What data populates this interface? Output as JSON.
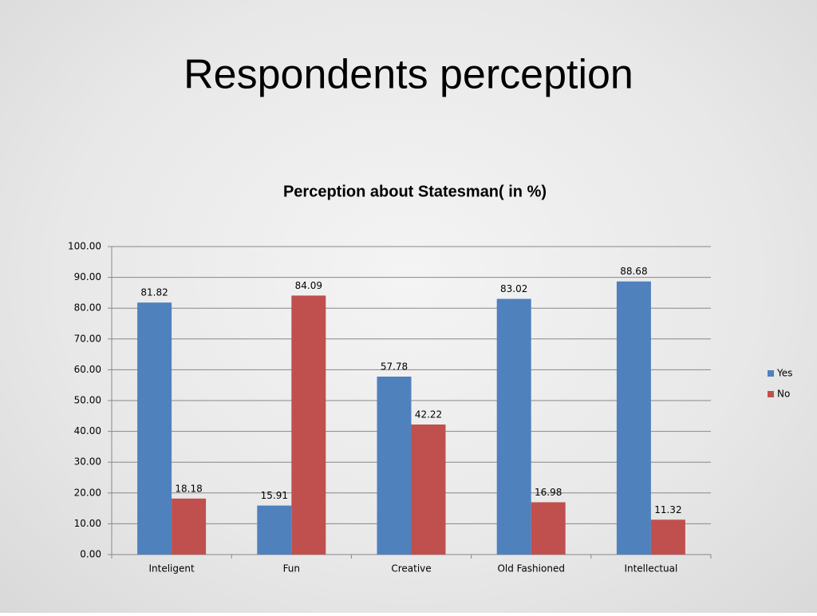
{
  "slide": {
    "title": "Respondents perception"
  },
  "chart_data": {
    "type": "bar",
    "title": "Perception about Statesman( in %)",
    "categories": [
      "Inteligent",
      "Fun",
      "Creative",
      "Old Fashioned",
      "Intellectual"
    ],
    "series": [
      {
        "name": "Yes",
        "color": "#4f81bd",
        "values": [
          81.82,
          15.91,
          57.78,
          83.02,
          88.68
        ]
      },
      {
        "name": "No",
        "color": "#c0504d",
        "values": [
          18.18,
          84.09,
          42.22,
          16.98,
          11.32
        ]
      }
    ],
    "ylim": [
      0,
      100
    ],
    "yticks": [
      {
        "value": 0,
        "label": "0.00"
      },
      {
        "value": 10,
        "label": "10.00"
      },
      {
        "value": 20,
        "label": "20.00"
      },
      {
        "value": 30,
        "label": "30.00"
      },
      {
        "value": 40,
        "label": "40.00"
      },
      {
        "value": 50,
        "label": "50.00"
      },
      {
        "value": 60,
        "label": "60.00"
      },
      {
        "value": 70,
        "label": "70.00"
      },
      {
        "value": 80,
        "label": "80.00"
      },
      {
        "value": 90,
        "label": "90.00"
      },
      {
        "value": 100,
        "label": "100.00"
      }
    ],
    "grid": true,
    "legend": "right"
  }
}
